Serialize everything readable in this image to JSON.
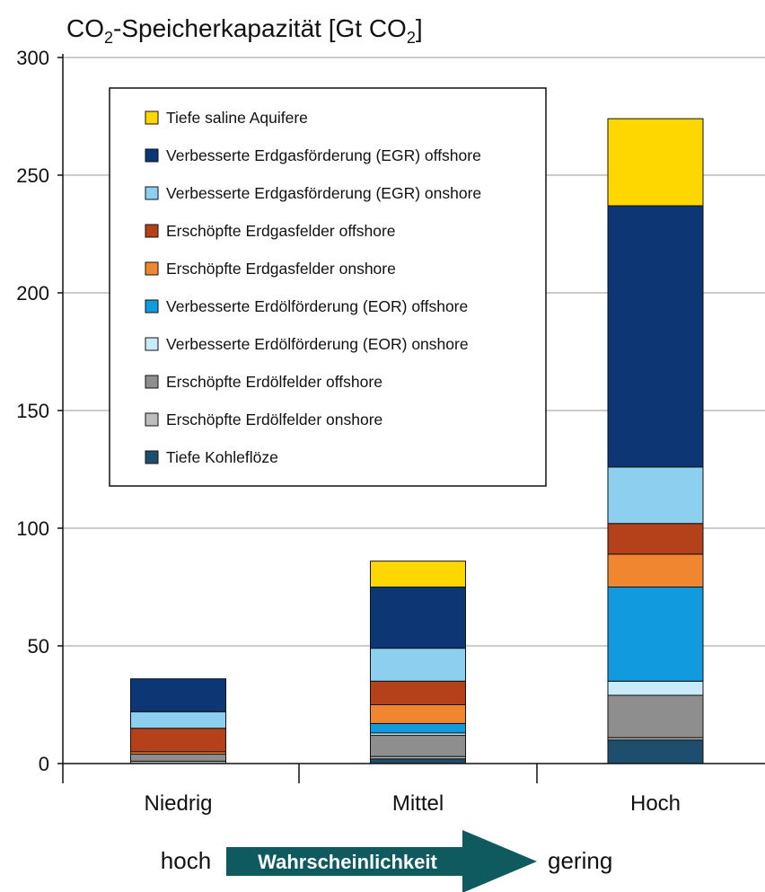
{
  "chart_data": {
    "type": "bar",
    "stacked": true,
    "title": {
      "main": "CO",
      "sub": "2",
      "rest": "-Speicherkapazität [Gt CO",
      "sub2": "2",
      "end": "]"
    },
    "ylim": [
      0,
      300
    ],
    "yticks": [
      0,
      50,
      100,
      150,
      200,
      250,
      300
    ],
    "grid": true,
    "legend_position": "top-left inside plot",
    "categories": [
      "Niedrig",
      "Mittel",
      "Hoch"
    ],
    "series": [
      {
        "name": "Tiefe Kohleflöze",
        "color": "#1e4e6e",
        "values": [
          0,
          2,
          10
        ]
      },
      {
        "name": "Erschöpfte Erdölfelder onshore",
        "color": "#bdbdbd",
        "values": [
          1,
          1,
          1
        ]
      },
      {
        "name": "Erschöpfte Erdölfelder offshore",
        "color": "#8e8e8e",
        "values": [
          3,
          9,
          18
        ]
      },
      {
        "name": "Verbesserte Erdölförderung (EOR) onshore",
        "color": "#c9eaf8",
        "values": [
          0,
          1,
          6
        ]
      },
      {
        "name": "Verbesserte Erdölförderung (EOR) offshore",
        "color": "#129ade",
        "values": [
          0,
          4,
          40
        ]
      },
      {
        "name": "Erschöpfte Erdgasfelder onshore",
        "color": "#f0862f",
        "values": [
          1,
          8,
          14
        ]
      },
      {
        "name": "Erschöpfte Erdgasfelder offshore",
        "color": "#b5411b",
        "values": [
          10,
          10,
          13
        ]
      },
      {
        "name": "Verbesserte Erdgasförderung (EGR) onshore",
        "color": "#8dcfee",
        "values": [
          7,
          14,
          24
        ]
      },
      {
        "name": "Verbesserte Erdgasförderung (EGR) offshore",
        "color": "#0d3674",
        "values": [
          14,
          26,
          111
        ]
      },
      {
        "name": "Tiefe saline Aquifere",
        "color": "#ffd700",
        "values": [
          0,
          11,
          37
        ]
      }
    ],
    "legend_order": [
      9,
      8,
      7,
      6,
      5,
      4,
      3,
      2,
      1,
      0
    ],
    "bottom_arrow": {
      "left_label": "hoch",
      "arrow_label": "Wahrscheinlichkeit",
      "right_label": "gering",
      "arrow_color": "#0f5a5e"
    }
  }
}
